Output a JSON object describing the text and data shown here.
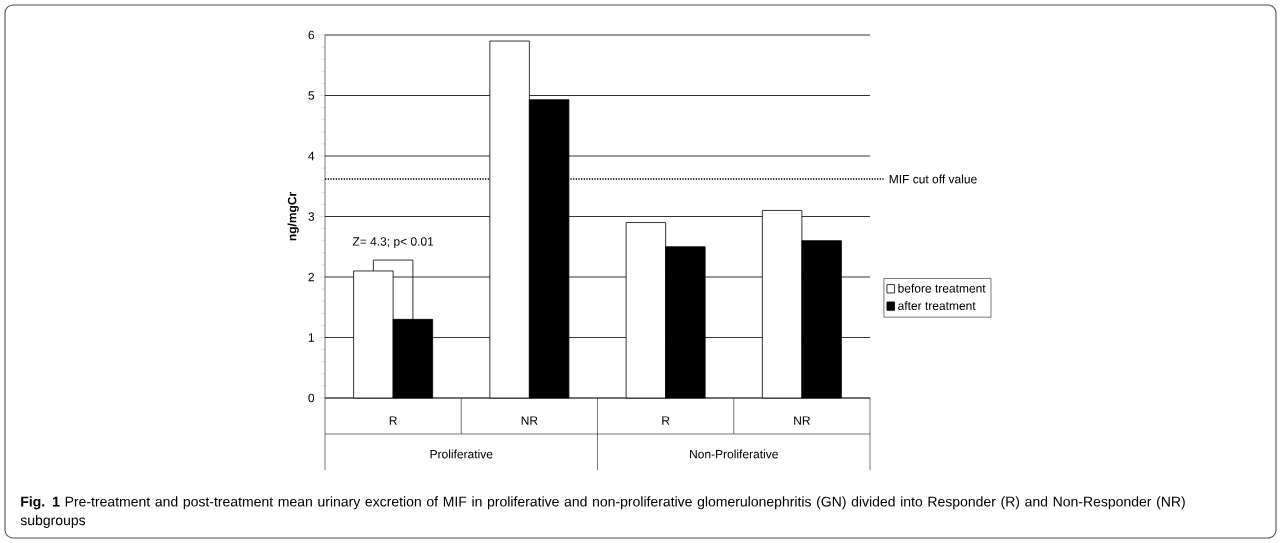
{
  "chart_data": {
    "type": "bar",
    "ylabel": "ng/mgCr",
    "categories": [
      "R",
      "NR",
      "R",
      "NR"
    ],
    "series": [
      {
        "name": "before treatment",
        "color": "#ffffff",
        "values": [
          2.1,
          5.9,
          2.9,
          3.1
        ]
      },
      {
        "name": "after treatment",
        "color": "#000000",
        "values": [
          1.3,
          4.93,
          2.5,
          2.6
        ]
      }
    ],
    "ylim": [
      0,
      6
    ],
    "yticks": [
      0,
      1,
      2,
      3,
      4,
      5,
      6
    ],
    "grid": "y",
    "legend": "right",
    "ref_lines": [
      {
        "axis": "y",
        "value": 3.62,
        "label": "MIF cut off value",
        "line_style": "dotted"
      }
    ],
    "annotations": [
      "Z= 4.3; p< 0.01",
      "Proliferative",
      "Non-Proliferative",
      "**Fig. 1** Pre-treatment and post-treatment mean urinary excretion of MIF in proliferative and non-proliferative glomerulonephritis (GN) divided into Responder (R) and Non-Responder (NR) subgroups"
    ]
  }
}
